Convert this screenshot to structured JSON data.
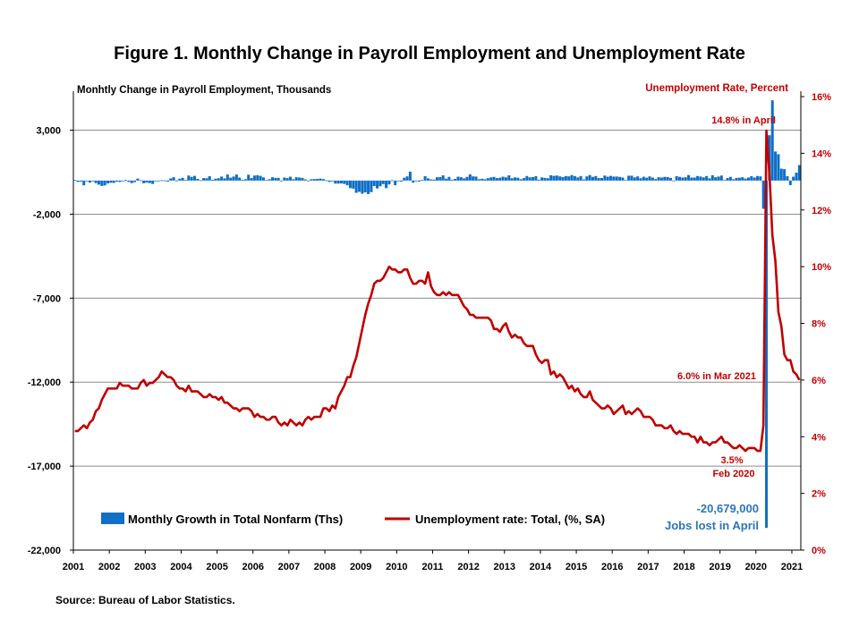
{
  "chart_data": {
    "type": "bar+line",
    "title": "Figure 1. Monthly Change in Payroll Employment and Unemployment Rate",
    "source": "Source: Bureau of Labor Statistics.",
    "left_axis": {
      "title": "Monhtly Change in Payroll Employment, Thousands",
      "range": [
        -22000,
        5000
      ],
      "ticks": [
        3000,
        -2000,
        -7000,
        -12000,
        -17000,
        -22000
      ],
      "tick_labels": [
        "3,000",
        "-2,000",
        "-7,000",
        "-12,000",
        "-17,000",
        "-22,000"
      ]
    },
    "right_axis": {
      "title": "Unemployment Rate, Percent",
      "range": [
        0,
        16
      ],
      "ticks": [
        16,
        14,
        12,
        10,
        8,
        6,
        4,
        2,
        0
      ],
      "tick_labels": [
        "16%",
        "14%",
        "12%",
        "10%",
        "8%",
        "6%",
        "4%",
        "2%",
        "0%"
      ],
      "color": "#c00000"
    },
    "x_axis": {
      "range": [
        2001,
        2021.25
      ],
      "ticks": [
        2001,
        2002,
        2003,
        2004,
        2005,
        2006,
        2007,
        2008,
        2009,
        2010,
        2011,
        2012,
        2013,
        2014,
        2015,
        2016,
        2017,
        2018,
        2019,
        2020,
        2021
      ],
      "tick_labels": [
        "2001",
        "2002",
        "2003",
        "2004",
        "2005",
        "2006",
        "2007",
        "2008",
        "2009",
        "2010",
        "2011",
        "2012",
        "2013",
        "2014",
        "2015",
        "2016",
        "2017",
        "2018",
        "2019",
        "2020",
        "2021"
      ]
    },
    "gridlines": "horizontal",
    "series": [
      {
        "name": "Monthly Growth in Total Nonfarm (Ths)",
        "type": "bar",
        "axis": "left",
        "color": "#0f6fc6",
        "start": "2001-01",
        "values": [
          30,
          -80,
          -60,
          -280,
          -40,
          -120,
          -40,
          -150,
          -240,
          -320,
          -290,
          -170,
          -130,
          -140,
          -60,
          -80,
          -10,
          40,
          -80,
          -150,
          -90,
          120,
          20,
          -160,
          -120,
          -150,
          -200,
          -40,
          -20,
          20,
          10,
          -60,
          130,
          200,
          10,
          110,
          160,
          40,
          300,
          220,
          280,
          100,
          20,
          150,
          140,
          260,
          50,
          110,
          140,
          240,
          130,
          360,
          170,
          240,
          360,
          180,
          50,
          80,
          350,
          150,
          300,
          320,
          280,
          190,
          30,
          80,
          200,
          160,
          160,
          0,
          180,
          150,
          230,
          80,
          200,
          180,
          160,
          70,
          -30,
          80,
          90,
          100,
          120,
          90,
          20,
          -80,
          -40,
          -180,
          -180,
          -170,
          -200,
          -280,
          -450,
          -480,
          -730,
          -670,
          -780,
          -700,
          -800,
          -690,
          -330,
          -470,
          -340,
          -210,
          -450,
          -230,
          20,
          -280,
          -10,
          -60,
          170,
          250,
          530,
          -120,
          -30,
          -60,
          40,
          260,
          130,
          70,
          60,
          200,
          210,
          310,
          110,
          220,
          50,
          100,
          230,
          200,
          130,
          220,
          370,
          250,
          240,
          80,
          110,
          80,
          140,
          190,
          220,
          150,
          170,
          230,
          190,
          310,
          140,
          190,
          170,
          80,
          150,
          270,
          190,
          210,
          260,
          50,
          190,
          160,
          140,
          320,
          280,
          300,
          250,
          210,
          270,
          250,
          330,
          260,
          190,
          270,
          70,
          250,
          330,
          220,
          270,
          150,
          150,
          300,
          230,
          280,
          240,
          240,
          220,
          180,
          30,
          290,
          290,
          190,
          250,
          140,
          230,
          170,
          250,
          180,
          90,
          200,
          180,
          220,
          210,
          160,
          -30,
          260,
          220,
          180,
          200,
          330,
          180,
          180,
          270,
          240,
          190,
          270,
          130,
          320,
          200,
          240,
          300,
          30,
          150,
          220,
          80,
          160,
          170,
          200,
          120,
          180,
          260,
          180,
          270,
          250,
          -1680,
          -20679,
          2700,
          4780,
          1730,
          1570,
          710,
          680,
          260,
          -270,
          230,
          470,
          920
        ]
      },
      {
        "name": "Unemployment rate: Total, (%, SA)",
        "type": "line",
        "axis": "right",
        "color": "#c00000",
        "start": "2001-01",
        "values": [
          4.2,
          4.2,
          4.3,
          4.4,
          4.3,
          4.5,
          4.6,
          4.9,
          5.0,
          5.3,
          5.5,
          5.7,
          5.7,
          5.7,
          5.7,
          5.9,
          5.8,
          5.8,
          5.8,
          5.7,
          5.7,
          5.7,
          5.9,
          6.0,
          5.8,
          5.9,
          5.9,
          6.0,
          6.1,
          6.3,
          6.2,
          6.1,
          6.1,
          6.0,
          5.8,
          5.7,
          5.7,
          5.6,
          5.8,
          5.6,
          5.6,
          5.6,
          5.5,
          5.4,
          5.4,
          5.5,
          5.4,
          5.4,
          5.3,
          5.4,
          5.2,
          5.2,
          5.1,
          5.0,
          5.0,
          4.9,
          5.0,
          5.0,
          5.0,
          4.9,
          4.7,
          4.8,
          4.7,
          4.7,
          4.6,
          4.6,
          4.7,
          4.7,
          4.5,
          4.4,
          4.5,
          4.4,
          4.6,
          4.5,
          4.4,
          4.5,
          4.4,
          4.6,
          4.7,
          4.6,
          4.7,
          4.7,
          4.7,
          5.0,
          5.0,
          4.9,
          5.1,
          5.0,
          5.4,
          5.6,
          5.8,
          6.1,
          6.1,
          6.5,
          6.8,
          7.3,
          7.8,
          8.3,
          8.7,
          9.0,
          9.4,
          9.5,
          9.5,
          9.6,
          9.8,
          10.0,
          9.9,
          9.9,
          9.8,
          9.8,
          9.9,
          9.9,
          9.6,
          9.4,
          9.4,
          9.5,
          9.5,
          9.4,
          9.8,
          9.3,
          9.1,
          9.0,
          9.0,
          9.1,
          9.0,
          9.1,
          9.0,
          9.0,
          9.0,
          8.8,
          8.6,
          8.5,
          8.3,
          8.3,
          8.2,
          8.2,
          8.2,
          8.2,
          8.2,
          8.1,
          7.8,
          7.8,
          7.7,
          7.9,
          8.0,
          7.7,
          7.5,
          7.6,
          7.5,
          7.5,
          7.3,
          7.2,
          7.2,
          7.2,
          6.9,
          6.7,
          6.6,
          6.7,
          6.7,
          6.2,
          6.3,
          6.1,
          6.2,
          6.1,
          5.9,
          5.7,
          5.8,
          5.6,
          5.7,
          5.5,
          5.4,
          5.4,
          5.6,
          5.3,
          5.2,
          5.1,
          5.0,
          5.0,
          5.1,
          5.0,
          4.8,
          4.9,
          5.0,
          5.1,
          4.8,
          4.9,
          4.8,
          4.9,
          5.0,
          4.9,
          4.7,
          4.7,
          4.7,
          4.6,
          4.4,
          4.4,
          4.4,
          4.3,
          4.3,
          4.4,
          4.2,
          4.1,
          4.2,
          4.1,
          4.1,
          4.1,
          4.0,
          4.0,
          3.8,
          4.0,
          3.8,
          3.8,
          3.7,
          3.8,
          3.8,
          3.9,
          4.0,
          3.8,
          3.8,
          3.7,
          3.6,
          3.6,
          3.7,
          3.6,
          3.5,
          3.6,
          3.6,
          3.6,
          3.5,
          3.5,
          4.4,
          14.8,
          13.3,
          11.1,
          10.2,
          8.4,
          7.9,
          6.9,
          6.7,
          6.7,
          6.3,
          6.2,
          6.0
        ]
      }
    ],
    "annotations": {
      "peak": "14.8% in April",
      "latest": "6.0% in Mar 2021",
      "low_value": "3.5%",
      "low_date": "Feb 2020",
      "jobs_value": "-20,679,000",
      "jobs_text": "Jobs lost in April"
    }
  }
}
